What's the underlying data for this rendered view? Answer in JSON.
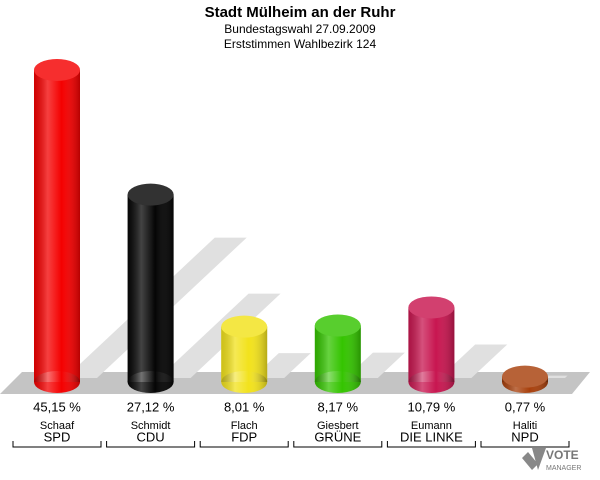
{
  "chart_data": {
    "type": "bar3d",
    "title": "Stadt Mülheim an der Ruhr",
    "subtitle": [
      "Bundestagswahl 27.09.2009",
      "Erststimmen Wahlbezirk 124"
    ],
    "candidates": [
      "Schaaf",
      "Schmidt",
      "Flach",
      "Giesbert",
      "Eumann",
      "Haliti"
    ],
    "categories": [
      "SPD",
      "CDU",
      "FDP",
      "GRÜNE",
      "DIE LINKE",
      "NPD"
    ],
    "values": [
      45.15,
      27.12,
      8.01,
      8.17,
      10.79,
      0.77
    ],
    "value_labels": [
      "45,15 %",
      "27,12 %",
      "8,01 %",
      "8,17 %",
      "10,79 %",
      "0,77 %"
    ],
    "colors": [
      "#f40000",
      "#050505",
      "#f2e21c",
      "#34c400",
      "#c81650",
      "#a8400c"
    ],
    "logo": [
      "VOTE",
      "MANAGER"
    ]
  }
}
